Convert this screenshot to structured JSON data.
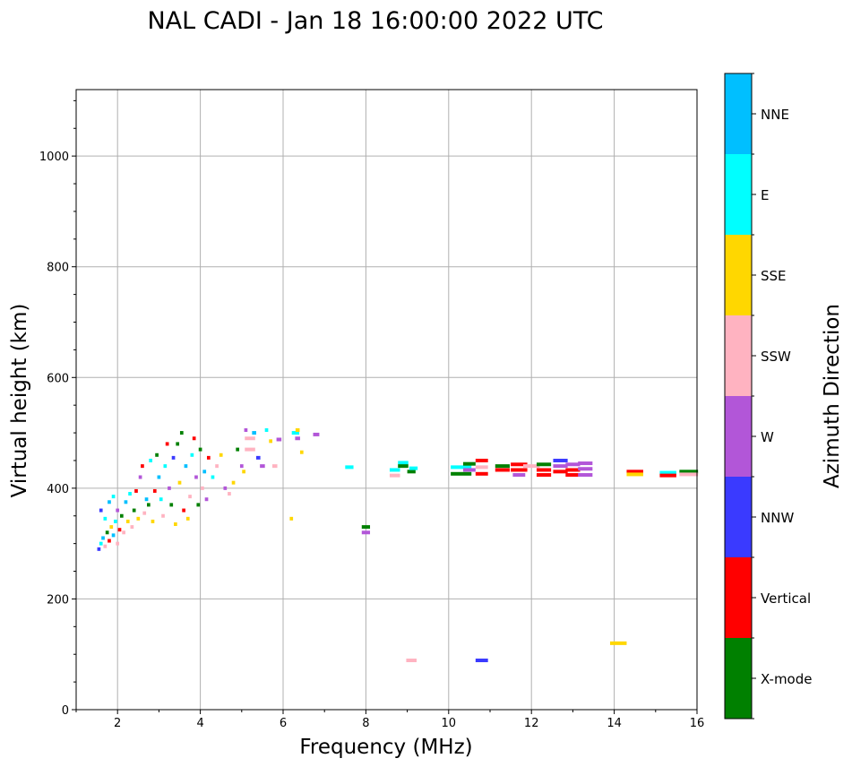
{
  "chart_data": {
    "type": "scatter",
    "title": "NAL CADI - Jan 18 16:00:00 2022 UTC",
    "xlabel": "Frequency (MHz)",
    "ylabel": "Virtual height (km)",
    "xlim": [
      1,
      16
    ],
    "ylim": [
      0,
      1120
    ],
    "xticks": [
      2,
      4,
      6,
      8,
      10,
      12,
      14,
      16
    ],
    "yticks": [
      0,
      200,
      400,
      600,
      800,
      1000
    ],
    "grid": true,
    "colorbar": {
      "label": "Azimuth Direction",
      "categories": [
        {
          "name": "X-mode",
          "color": "#008000"
        },
        {
          "name": "Vertical",
          "color": "#ff0000"
        },
        {
          "name": "NNW",
          "color": "#3a3aff"
        },
        {
          "name": "W",
          "color": "#b256d8"
        },
        {
          "name": "SSW",
          "color": "#ffb3c1"
        },
        {
          "name": "SSE",
          "color": "#ffd700"
        },
        {
          "name": "E",
          "color": "#00ffff"
        },
        {
          "name": "NNE",
          "color": "#00bfff"
        }
      ]
    },
    "points": [
      {
        "x": 1.55,
        "y": 290,
        "w": 0.08,
        "c": "NNW"
      },
      {
        "x": 1.6,
        "y": 300,
        "w": 0.08,
        "c": "E"
      },
      {
        "x": 1.65,
        "y": 310,
        "w": 0.08,
        "c": "NNE"
      },
      {
        "x": 1.7,
        "y": 295,
        "w": 0.08,
        "c": "SSW"
      },
      {
        "x": 1.75,
        "y": 320,
        "w": 0.08,
        "c": "X-mode"
      },
      {
        "x": 1.8,
        "y": 305,
        "w": 0.08,
        "c": "Vertical"
      },
      {
        "x": 1.85,
        "y": 330,
        "w": 0.08,
        "c": "SSE"
      },
      {
        "x": 1.9,
        "y": 315,
        "w": 0.08,
        "c": "NNE"
      },
      {
        "x": 1.95,
        "y": 340,
        "w": 0.08,
        "c": "E"
      },
      {
        "x": 2.0,
        "y": 300,
        "w": 0.08,
        "c": "SSW"
      },
      {
        "x": 2.05,
        "y": 325,
        "w": 0.08,
        "c": "Vertical"
      },
      {
        "x": 1.6,
        "y": 360,
        "w": 0.08,
        "c": "NNW"
      },
      {
        "x": 1.7,
        "y": 345,
        "w": 0.08,
        "c": "E"
      },
      {
        "x": 1.8,
        "y": 375,
        "w": 0.08,
        "c": "NNE"
      },
      {
        "x": 1.9,
        "y": 385,
        "w": 0.08,
        "c": "E"
      },
      {
        "x": 2.0,
        "y": 360,
        "w": 0.08,
        "c": "W"
      },
      {
        "x": 2.1,
        "y": 350,
        "w": 0.08,
        "c": "X-mode"
      },
      {
        "x": 2.15,
        "y": 320,
        "w": 0.08,
        "c": "SSW"
      },
      {
        "x": 2.2,
        "y": 375,
        "w": 0.08,
        "c": "NNE"
      },
      {
        "x": 2.25,
        "y": 340,
        "w": 0.08,
        "c": "SSE"
      },
      {
        "x": 2.3,
        "y": 390,
        "w": 0.08,
        "c": "E"
      },
      {
        "x": 2.35,
        "y": 330,
        "w": 0.08,
        "c": "SSW"
      },
      {
        "x": 2.4,
        "y": 360,
        "w": 0.08,
        "c": "X-mode"
      },
      {
        "x": 2.45,
        "y": 395,
        "w": 0.08,
        "c": "Vertical"
      },
      {
        "x": 2.5,
        "y": 345,
        "w": 0.08,
        "c": "SSE"
      },
      {
        "x": 2.55,
        "y": 420,
        "w": 0.08,
        "c": "W"
      },
      {
        "x": 2.6,
        "y": 440,
        "w": 0.08,
        "c": "Vertical"
      },
      {
        "x": 2.65,
        "y": 355,
        "w": 0.08,
        "c": "SSW"
      },
      {
        "x": 2.7,
        "y": 380,
        "w": 0.08,
        "c": "NNE"
      },
      {
        "x": 2.75,
        "y": 370,
        "w": 0.08,
        "c": "X-mode"
      },
      {
        "x": 2.8,
        "y": 450,
        "w": 0.08,
        "c": "E"
      },
      {
        "x": 2.85,
        "y": 340,
        "w": 0.08,
        "c": "SSE"
      },
      {
        "x": 2.9,
        "y": 395,
        "w": 0.08,
        "c": "Vertical"
      },
      {
        "x": 2.95,
        "y": 460,
        "w": 0.08,
        "c": "X-mode"
      },
      {
        "x": 3.0,
        "y": 420,
        "w": 0.08,
        "c": "NNE"
      },
      {
        "x": 3.05,
        "y": 380,
        "w": 0.08,
        "c": "E"
      },
      {
        "x": 3.1,
        "y": 350,
        "w": 0.08,
        "c": "SSW"
      },
      {
        "x": 3.15,
        "y": 440,
        "w": 0.08,
        "c": "E"
      },
      {
        "x": 3.2,
        "y": 480,
        "w": 0.08,
        "c": "Vertical"
      },
      {
        "x": 3.25,
        "y": 400,
        "w": 0.08,
        "c": "W"
      },
      {
        "x": 3.3,
        "y": 370,
        "w": 0.08,
        "c": "X-mode"
      },
      {
        "x": 3.35,
        "y": 455,
        "w": 0.08,
        "c": "NNW"
      },
      {
        "x": 3.4,
        "y": 335,
        "w": 0.08,
        "c": "SSE"
      },
      {
        "x": 3.45,
        "y": 480,
        "w": 0.08,
        "c": "X-mode"
      },
      {
        "x": 3.5,
        "y": 410,
        "w": 0.08,
        "c": "SSE"
      },
      {
        "x": 3.55,
        "y": 500,
        "w": 0.08,
        "c": "X-mode"
      },
      {
        "x": 3.6,
        "y": 360,
        "w": 0.08,
        "c": "Vertical"
      },
      {
        "x": 3.65,
        "y": 440,
        "w": 0.08,
        "c": "NNE"
      },
      {
        "x": 3.7,
        "y": 345,
        "w": 0.08,
        "c": "SSE"
      },
      {
        "x": 3.75,
        "y": 385,
        "w": 0.08,
        "c": "SSW"
      },
      {
        "x": 3.8,
        "y": 460,
        "w": 0.08,
        "c": "E"
      },
      {
        "x": 3.85,
        "y": 490,
        "w": 0.08,
        "c": "Vertical"
      },
      {
        "x": 3.9,
        "y": 420,
        "w": 0.08,
        "c": "W"
      },
      {
        "x": 3.95,
        "y": 370,
        "w": 0.08,
        "c": "X-mode"
      },
      {
        "x": 4.0,
        "y": 470,
        "w": 0.08,
        "c": "X-mode"
      },
      {
        "x": 4.05,
        "y": 400,
        "w": 0.08,
        "c": "SSW"
      },
      {
        "x": 4.1,
        "y": 430,
        "w": 0.08,
        "c": "NNE"
      },
      {
        "x": 4.15,
        "y": 380,
        "w": 0.08,
        "c": "W"
      },
      {
        "x": 4.2,
        "y": 455,
        "w": 0.08,
        "c": "Vertical"
      },
      {
        "x": 4.3,
        "y": 420,
        "w": 0.08,
        "c": "E"
      },
      {
        "x": 4.4,
        "y": 440,
        "w": 0.08,
        "c": "SSW"
      },
      {
        "x": 4.5,
        "y": 460,
        "w": 0.08,
        "c": "SSE"
      },
      {
        "x": 4.6,
        "y": 400,
        "w": 0.08,
        "c": "W"
      },
      {
        "x": 4.7,
        "y": 390,
        "w": 0.08,
        "c": "SSW"
      },
      {
        "x": 4.8,
        "y": 410,
        "w": 0.08,
        "c": "SSE"
      },
      {
        "x": 4.9,
        "y": 470,
        "w": 0.08,
        "c": "X-mode"
      },
      {
        "x": 5.0,
        "y": 440,
        "w": 0.08,
        "c": "W"
      },
      {
        "x": 5.05,
        "y": 430,
        "w": 0.08,
        "c": "SSE"
      },
      {
        "x": 5.1,
        "y": 505,
        "w": 0.08,
        "c": "W"
      },
      {
        "x": 5.2,
        "y": 490,
        "w": 0.25,
        "c": "SSW"
      },
      {
        "x": 5.2,
        "y": 470,
        "w": 0.25,
        "c": "SSW"
      },
      {
        "x": 5.3,
        "y": 500,
        "w": 0.1,
        "c": "NNE"
      },
      {
        "x": 5.4,
        "y": 455,
        "w": 0.1,
        "c": "NNW"
      },
      {
        "x": 5.5,
        "y": 440,
        "w": 0.12,
        "c": "W"
      },
      {
        "x": 5.6,
        "y": 505,
        "w": 0.08,
        "c": "E"
      },
      {
        "x": 5.7,
        "y": 485,
        "w": 0.08,
        "c": "SSE"
      },
      {
        "x": 5.8,
        "y": 440,
        "w": 0.12,
        "c": "SSW"
      },
      {
        "x": 5.9,
        "y": 488,
        "w": 0.12,
        "c": "W"
      },
      {
        "x": 6.3,
        "y": 500,
        "w": 0.18,
        "c": "E"
      },
      {
        "x": 6.35,
        "y": 505,
        "w": 0.1,
        "c": "SSE"
      },
      {
        "x": 6.35,
        "y": 490,
        "w": 0.12,
        "c": "W"
      },
      {
        "x": 6.45,
        "y": 465,
        "w": 0.08,
        "c": "SSE"
      },
      {
        "x": 6.2,
        "y": 345,
        "w": 0.08,
        "c": "SSE"
      },
      {
        "x": 6.8,
        "y": 497,
        "w": 0.15,
        "c": "W"
      },
      {
        "x": 7.6,
        "y": 438,
        "w": 0.2,
        "c": "E"
      },
      {
        "x": 8.0,
        "y": 330,
        "w": 0.2,
        "c": "X-mode"
      },
      {
        "x": 8.0,
        "y": 320,
        "w": 0.2,
        "c": "W"
      },
      {
        "x": 8.7,
        "y": 433,
        "w": 0.25,
        "c": "E"
      },
      {
        "x": 8.7,
        "y": 423,
        "w": 0.25,
        "c": "SSW"
      },
      {
        "x": 8.9,
        "y": 446,
        "w": 0.25,
        "c": "E"
      },
      {
        "x": 8.9,
        "y": 440,
        "w": 0.25,
        "c": "X-mode"
      },
      {
        "x": 9.1,
        "y": 430,
        "w": 0.2,
        "c": "X-mode"
      },
      {
        "x": 9.15,
        "y": 436,
        "w": 0.2,
        "c": "E"
      },
      {
        "x": 9.1,
        "y": 89,
        "w": 0.25,
        "c": "SSW"
      },
      {
        "x": 10.3,
        "y": 438,
        "w": 0.5,
        "c": "E"
      },
      {
        "x": 10.3,
        "y": 426,
        "w": 0.5,
        "c": "X-mode"
      },
      {
        "x": 10.5,
        "y": 444,
        "w": 0.3,
        "c": "X-mode"
      },
      {
        "x": 10.5,
        "y": 433,
        "w": 0.3,
        "c": "W"
      },
      {
        "x": 10.8,
        "y": 450,
        "w": 0.3,
        "c": "Vertical"
      },
      {
        "x": 10.8,
        "y": 438,
        "w": 0.3,
        "c": "SSW"
      },
      {
        "x": 10.8,
        "y": 426,
        "w": 0.3,
        "c": "Vertical"
      },
      {
        "x": 10.8,
        "y": 89,
        "w": 0.3,
        "c": "NNW"
      },
      {
        "x": 11.3,
        "y": 440,
        "w": 0.35,
        "c": "X-mode"
      },
      {
        "x": 11.3,
        "y": 433,
        "w": 0.35,
        "c": "Vertical"
      },
      {
        "x": 11.7,
        "y": 443,
        "w": 0.4,
        "c": "Vertical"
      },
      {
        "x": 11.7,
        "y": 433,
        "w": 0.4,
        "c": "Vertical"
      },
      {
        "x": 11.7,
        "y": 424,
        "w": 0.3,
        "c": "W"
      },
      {
        "x": 12.0,
        "y": 440,
        "w": 0.4,
        "c": "SSW"
      },
      {
        "x": 12.3,
        "y": 443,
        "w": 0.35,
        "c": "X-mode"
      },
      {
        "x": 12.3,
        "y": 433,
        "w": 0.35,
        "c": "Vertical"
      },
      {
        "x": 12.3,
        "y": 424,
        "w": 0.35,
        "c": "Vertical"
      },
      {
        "x": 12.7,
        "y": 450,
        "w": 0.35,
        "c": "NNW"
      },
      {
        "x": 12.7,
        "y": 440,
        "w": 0.35,
        "c": "W"
      },
      {
        "x": 12.7,
        "y": 430,
        "w": 0.35,
        "c": "Vertical"
      },
      {
        "x": 13.0,
        "y": 443,
        "w": 0.35,
        "c": "W"
      },
      {
        "x": 13.0,
        "y": 433,
        "w": 0.35,
        "c": "Vertical"
      },
      {
        "x": 13.0,
        "y": 424,
        "w": 0.35,
        "c": "Vertical"
      },
      {
        "x": 13.3,
        "y": 445,
        "w": 0.35,
        "c": "W"
      },
      {
        "x": 13.3,
        "y": 435,
        "w": 0.35,
        "c": "W"
      },
      {
        "x": 13.3,
        "y": 424,
        "w": 0.35,
        "c": "W"
      },
      {
        "x": 14.5,
        "y": 430,
        "w": 0.4,
        "c": "Vertical"
      },
      {
        "x": 14.5,
        "y": 425,
        "w": 0.4,
        "c": "SSE"
      },
      {
        "x": 14.1,
        "y": 120,
        "w": 0.4,
        "c": "SSE"
      },
      {
        "x": 15.3,
        "y": 428,
        "w": 0.4,
        "c": "E"
      },
      {
        "x": 15.3,
        "y": 423,
        "w": 0.4,
        "c": "Vertical"
      },
      {
        "x": 15.8,
        "y": 430,
        "w": 0.45,
        "c": "X-mode"
      },
      {
        "x": 15.8,
        "y": 425,
        "w": 0.45,
        "c": "SSW"
      }
    ]
  }
}
